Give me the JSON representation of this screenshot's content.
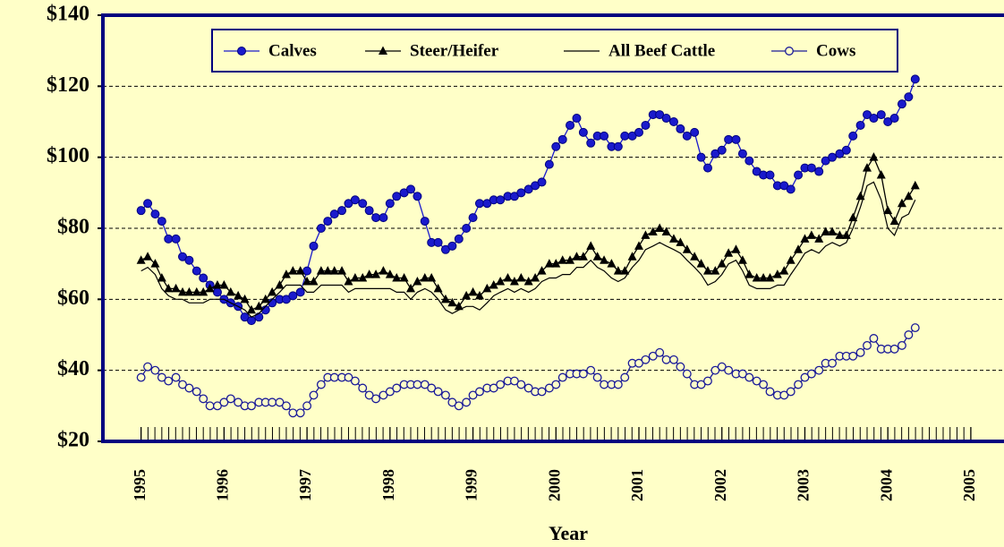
{
  "chart_data": {
    "type": "line",
    "x_label": "Year",
    "xlim": [
      1994.54,
      2005.4
    ],
    "xticks": [
      1995,
      1996,
      1997,
      1998,
      1999,
      2000,
      2001,
      2002,
      2003,
      2004,
      2005
    ],
    "ylim": [
      20,
      140
    ],
    "yticks": [
      {
        "value": 20,
        "label": "$20"
      },
      {
        "value": 40,
        "label": "$40"
      },
      {
        "value": 60,
        "label": "$60"
      },
      {
        "value": 80,
        "label": "$80"
      },
      {
        "value": 100,
        "label": "$100"
      },
      {
        "value": 120,
        "label": "$120"
      },
      {
        "value": 140,
        "label": "$140"
      }
    ],
    "grid": true,
    "legend": "top",
    "x": [
      1995.0,
      1995.08,
      1995.17,
      1995.25,
      1995.33,
      1995.42,
      1995.5,
      1995.58,
      1995.67,
      1995.75,
      1995.83,
      1995.92,
      1996.0,
      1996.08,
      1996.17,
      1996.25,
      1996.33,
      1996.42,
      1996.5,
      1996.58,
      1996.67,
      1996.75,
      1996.83,
      1996.92,
      1997.0,
      1997.08,
      1997.17,
      1997.25,
      1997.33,
      1997.42,
      1997.5,
      1997.58,
      1997.67,
      1997.75,
      1997.83,
      1997.92,
      1998.0,
      1998.08,
      1998.17,
      1998.25,
      1998.33,
      1998.42,
      1998.5,
      1998.58,
      1998.67,
      1998.75,
      1998.83,
      1998.92,
      1999.0,
      1999.08,
      1999.17,
      1999.25,
      1999.33,
      1999.42,
      1999.5,
      1999.58,
      1999.67,
      1999.75,
      1999.83,
      1999.92,
      2000.0,
      2000.08,
      2000.17,
      2000.25,
      2000.33,
      2000.42,
      2000.5,
      2000.58,
      2000.67,
      2000.75,
      2000.83,
      2000.92,
      2001.0,
      2001.08,
      2001.17,
      2001.25,
      2001.33,
      2001.42,
      2001.5,
      2001.58,
      2001.67,
      2001.75,
      2001.83,
      2001.92,
      2002.0,
      2002.08,
      2002.17,
      2002.25,
      2002.33,
      2002.42,
      2002.5,
      2002.58,
      2002.67,
      2002.75,
      2002.83,
      2002.92,
      2003.0,
      2003.08,
      2003.17,
      2003.25,
      2003.33,
      2003.42,
      2003.5,
      2003.58,
      2003.67,
      2003.75,
      2003.83,
      2003.92,
      2004.0,
      2004.08,
      2004.17,
      2004.25,
      2004.33
    ],
    "series": [
      {
        "name": "Calves",
        "color": "#1a1acc",
        "marker": "circle",
        "values": [
          85,
          87,
          84,
          82,
          77,
          77,
          72,
          71,
          68,
          66,
          64,
          62,
          60,
          59,
          58,
          55,
          54,
          55,
          57,
          59,
          60,
          60,
          61,
          62,
          68,
          75,
          80,
          82,
          84,
          85,
          87,
          88,
          87,
          85,
          83,
          83,
          87,
          89,
          90,
          91,
          89,
          82,
          76,
          76,
          74,
          75,
          77,
          80,
          83,
          87,
          87,
          88,
          88,
          89,
          89,
          90,
          91,
          92,
          93,
          98,
          103,
          105,
          109,
          111,
          107,
          104,
          106,
          106,
          103,
          103,
          106,
          106,
          107,
          109,
          112,
          112,
          111,
          110,
          108,
          106,
          107,
          100,
          97,
          101,
          102,
          105,
          105,
          101,
          99,
          96,
          95,
          95,
          92,
          92,
          91,
          95,
          97,
          97,
          96,
          99,
          100,
          101,
          102,
          106,
          109,
          112,
          111,
          112,
          110,
          111,
          115,
          117,
          122
        ]
      },
      {
        "name": "Steer/Heifer",
        "color": "#000000",
        "marker": "triangle",
        "values": [
          71,
          72,
          70,
          66,
          63,
          63,
          62,
          62,
          62,
          62,
          63,
          64,
          64,
          62,
          61,
          60,
          57,
          58,
          60,
          62,
          64,
          67,
          68,
          68,
          65,
          65,
          68,
          68,
          68,
          68,
          65,
          66,
          66,
          67,
          67,
          68,
          67,
          66,
          66,
          63,
          65,
          66,
          66,
          63,
          60,
          59,
          58,
          61,
          62,
          61,
          63,
          64,
          65,
          66,
          65,
          66,
          65,
          66,
          68,
          70,
          70,
          71,
          71,
          72,
          72,
          75,
          72,
          71,
          70,
          68,
          68,
          72,
          75,
          78,
          79,
          80,
          79,
          77,
          76,
          74,
          72,
          70,
          68,
          68,
          70,
          73,
          74,
          71,
          67,
          66,
          66,
          66,
          67,
          68,
          71,
          74,
          77,
          78,
          77,
          79,
          79,
          78,
          78,
          83,
          89,
          97,
          100,
          95,
          85,
          82,
          87,
          89,
          92
        ]
      },
      {
        "name": "All Beef Cattle",
        "color": "#000000",
        "marker": "none",
        "values": [
          68,
          69,
          67,
          63,
          61,
          60,
          60,
          59,
          59,
          59,
          60,
          60,
          60,
          59,
          58,
          57,
          55,
          56,
          58,
          60,
          62,
          64,
          64,
          64,
          62,
          62,
          64,
          64,
          64,
          64,
          62,
          63,
          63,
          63,
          63,
          63,
          63,
          62,
          62,
          60,
          62,
          63,
          62,
          60,
          57,
          56,
          57,
          58,
          58,
          57,
          59,
          61,
          62,
          63,
          62,
          63,
          62,
          63,
          65,
          66,
          66,
          67,
          67,
          69,
          69,
          71,
          69,
          68,
          66,
          65,
          66,
          69,
          71,
          74,
          75,
          76,
          75,
          74,
          73,
          71,
          69,
          67,
          64,
          65,
          67,
          70,
          71,
          68,
          64,
          63,
          63,
          63,
          64,
          64,
          67,
          70,
          73,
          74,
          73,
          75,
          76,
          75,
          76,
          80,
          86,
          92,
          93,
          88,
          80,
          78,
          83,
          84,
          88
        ]
      },
      {
        "name": "Cows",
        "color": "#1a1a99",
        "marker": "open-circle",
        "values": [
          38,
          41,
          40,
          38,
          37,
          38,
          36,
          35,
          34,
          32,
          30,
          30,
          31,
          32,
          31,
          30,
          30,
          31,
          31,
          31,
          31,
          30,
          28,
          28,
          30,
          33,
          36,
          38,
          38,
          38,
          38,
          37,
          35,
          33,
          32,
          33,
          34,
          35,
          36,
          36,
          36,
          36,
          35,
          34,
          33,
          31,
          30,
          31,
          33,
          34,
          35,
          35,
          36,
          37,
          37,
          36,
          35,
          34,
          34,
          35,
          36,
          38,
          39,
          39,
          39,
          40,
          38,
          36,
          36,
          36,
          38,
          42,
          42,
          43,
          44,
          45,
          43,
          43,
          41,
          39,
          36,
          36,
          37,
          40,
          41,
          40,
          39,
          39,
          38,
          37,
          36,
          34,
          33,
          33,
          34,
          36,
          38,
          39,
          40,
          42,
          42,
          44,
          44,
          44,
          45,
          47,
          49,
          46,
          46,
          46,
          47,
          50,
          52
        ]
      }
    ]
  }
}
